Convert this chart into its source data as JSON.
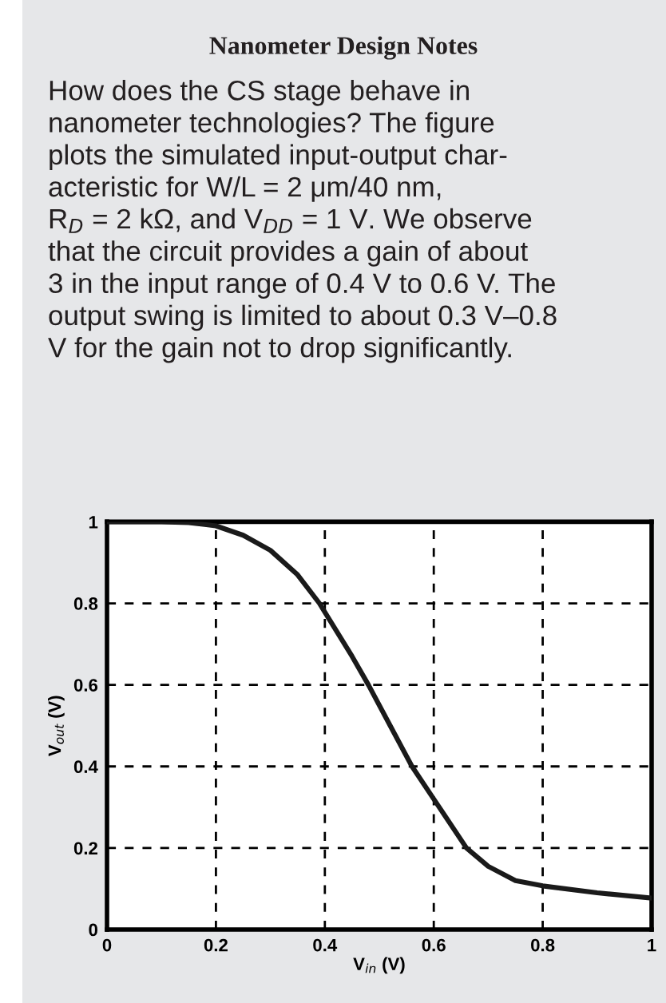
{
  "chart_data": {
    "type": "line",
    "title": "Nanometer Design Notes",
    "annotations": [
      "How does the CS stage behave in\nnanometer technologies? The figure\nplots the simulated input-output char-\nacteristic for W/L = 2 μm/40 nm,\nR$_{D}$ = 2 kΩ, and V$_{DD}$ = 1 V. We observe\nthat the circuit provides a gain of about\n3 in the input range of 0.4 V to 0.6 V. The\noutput swing is limited to about 0.3 V–0.8\nV for the gain not to drop significantly."
    ],
    "xlabel": "V$_{in}$ (V)",
    "ylabel": "V$_{out}$ (V)",
    "series": [
      {
        "color": "#1a1a1a",
        "x": [
          0,
          0.05,
          0.1,
          0.15,
          0.2,
          0.25,
          0.3,
          0.35,
          0.39,
          0.45,
          0.48,
          0.52,
          0.56,
          0.6,
          0.66,
          0.7,
          0.75,
          0.8,
          0.9,
          1.0
        ],
        "values": [
          1,
          1,
          1,
          0.998,
          0.99,
          0.967,
          0.93,
          0.87,
          0.8,
          0.67,
          0.6,
          0.5,
          0.4,
          0.32,
          0.2,
          0.155,
          0.12,
          0.107,
          0.09,
          0.077
        ]
      }
    ],
    "xlim": [
      0,
      1
    ],
    "ylim": [
      0,
      1
    ],
    "xticks": [
      0,
      0.2,
      0.4,
      0.6,
      0.8,
      1
    ],
    "yticks": [
      0,
      0.2,
      0.4,
      0.6,
      0.8,
      1
    ],
    "grid": true,
    "line_style": "solid",
    "marker": "none"
  }
}
